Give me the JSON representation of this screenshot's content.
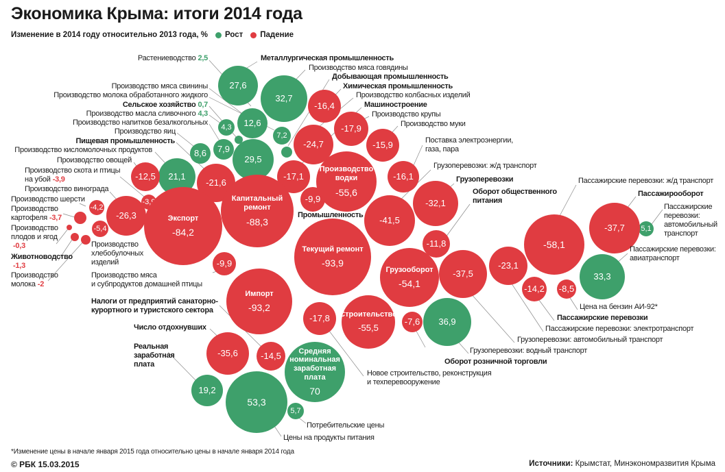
{
  "header": {
    "title": "Экономика Крыма: итоги 2014 года",
    "subtitle": "Изменение в 2014 году относительно 2013 года, %",
    "legend_growth": "Рост",
    "legend_decline": "Падение"
  },
  "colors": {
    "growth": "#3ea06b",
    "decline": "#e03c41",
    "text": "#1a1a1a",
    "line": "#8a8a8a"
  },
  "chart_data": {
    "type": "bubble",
    "title": "Экономика Крыма: итоги 2014 года",
    "unit": "%",
    "bubbles": [
      {
        "value": 27.6
      },
      {
        "value": 32.7
      },
      {
        "value": 12.6
      },
      {
        "value": 4.3
      },
      {
        "value": 0.7
      },
      {
        "value": 2.5
      },
      {
        "value": 7.2
      },
      {
        "value": 7.9
      },
      {
        "value": 8.6
      },
      {
        "value": 29.5
      },
      {
        "value": 21.1
      },
      {
        "value": 36.9
      },
      {
        "value": 33.3
      },
      {
        "value": 5.1
      },
      {
        "value": 70,
        "inner": "Средняя\nноминальная\nзаработная\nплата"
      },
      {
        "value": 19.2
      },
      {
        "value": 53.3
      },
      {
        "value": 5.7
      },
      {
        "value": -16.4
      },
      {
        "value": -24.7
      },
      {
        "value": -17.9
      },
      {
        "value": -15.9
      },
      {
        "value": -17.1
      },
      {
        "value": -55.6,
        "inner": "Производство\nводки"
      },
      {
        "value": -16.1
      },
      {
        "value": -9.9
      },
      {
        "value": -12.5
      },
      {
        "value": -21.6
      },
      {
        "value": -26.3
      },
      {
        "value": -4.2
      },
      {
        "value": -3.9
      },
      {
        "value": -5.4
      },
      {
        "value": -3.7
      },
      {
        "value": -0.3
      },
      {
        "value": -1.3
      },
      {
        "value": -2
      },
      {
        "value": -84.2,
        "inner": "Экспорт"
      },
      {
        "value": -88.3,
        "inner": "Капитальный\nремонт"
      },
      {
        "value": -9.9
      },
      {
        "value": -41.5
      },
      {
        "value": -32.1
      },
      {
        "value": -11.8
      },
      {
        "value": -93.9,
        "inner": "Текущий ремонт"
      },
      {
        "value": -93.2,
        "inner": "Импорт"
      },
      {
        "value": -54.1,
        "inner": "Грузооборот"
      },
      {
        "value": -37.5
      },
      {
        "value": -23.1
      },
      {
        "value": -58.1
      },
      {
        "value": -37.7
      },
      {
        "value": -14.2
      },
      {
        "value": -8.5
      },
      {
        "value": -17.8
      },
      {
        "value": -55.5,
        "inner": "Строительство"
      },
      {
        "value": -7.6
      },
      {
        "value": -35.6
      },
      {
        "value": -14.5
      }
    ],
    "labels": [
      {
        "text": "Растениеводство",
        "value": "2,5",
        "sign": "growth"
      },
      {
        "text": "Металлургическая промышленность",
        "bold": true
      },
      {
        "text": "Производство мяса говядины"
      },
      {
        "text": "Добывающая промышленность",
        "bold": true
      },
      {
        "text": "Химическая промышленность",
        "bold": true
      },
      {
        "text": "Производство колбасных изделий"
      },
      {
        "text": "Машиностроение",
        "bold": true
      },
      {
        "text": "Производство крупы"
      },
      {
        "text": "Производство муки"
      },
      {
        "text": "Поставка электроэнергии,\nгаза, пара"
      },
      {
        "text": "Грузоперевозки: ж/д транспорт"
      },
      {
        "text": "Грузоперевозки",
        "bold": true
      },
      {
        "text": "Оборот общественного\nпитания",
        "bold": true
      },
      {
        "text": "Производство мяса свинины"
      },
      {
        "text": "Производство молока обработанного жидкого"
      },
      {
        "text": "Сельское хозяйство",
        "value": "0,7",
        "sign": "growth",
        "bold": true
      },
      {
        "text": "Производство масла сливочного",
        "value": "4,3",
        "sign": "growth"
      },
      {
        "text": "Производство напитков безалкогольных"
      },
      {
        "text": "Производство яиц"
      },
      {
        "text": "Пищевая промышленность",
        "bold": true
      },
      {
        "text": "Производство кисломолочных продуктов"
      },
      {
        "text": "Производство овощей"
      },
      {
        "text": "Производство скота и птицы\nна убой",
        "value": "-3,9",
        "sign": "decline"
      },
      {
        "text": "Производство винограда"
      },
      {
        "text": "Производство шерсти"
      },
      {
        "text": "Производство\nкартофеля",
        "value": "-3,7",
        "sign": "decline"
      },
      {
        "text": "Производство\nплодов и ягод\n",
        "value": "-0,3",
        "sign": "decline"
      },
      {
        "text": "Животноводство\n",
        "value": "-1,3",
        "sign": "decline",
        "bold": true
      },
      {
        "text": "Производство\nмолока",
        "value": "-2",
        "sign": "decline"
      },
      {
        "text": "Производство\nхлебобулочных\nизделий"
      },
      {
        "text": "Производство мяса\nи субпродуктов домашней птицы"
      },
      {
        "text": "Промышленность",
        "bold": true
      },
      {
        "text": "Налоги от предприятий санаторно-\nкурортного и туристского сектора",
        "bold": true
      },
      {
        "text": "Число отдохнувших",
        "bold": true
      },
      {
        "text": "Реальная\nзаработная\nплата",
        "bold": true
      },
      {
        "text": "Потребительские цены"
      },
      {
        "text": "Цены на продукты питания"
      },
      {
        "text": "Новое строительство, реконструкция\nи техперевооружение"
      },
      {
        "text": "Оборот розничной торговли",
        "bold": true
      },
      {
        "text": "Грузоперевозки: водный транспорт"
      },
      {
        "text": "Грузоперевозки: автомобильный транспорт"
      },
      {
        "text": "Пассажирские перевозки: электротранспорт"
      },
      {
        "text": "Пассажирские перевозки",
        "bold": true
      },
      {
        "text": "Цена на бензин АИ-92*"
      },
      {
        "text": "Пассажирские перевозки: ж/д транспорт"
      },
      {
        "text": "Пассажирооборот",
        "bold": true
      },
      {
        "text": "Пассажирские\nперевозки:\nавтомобильный\nтранспорт"
      },
      {
        "text": "Пассажирские перевозки:\nавиатранспорт"
      }
    ]
  },
  "footer": {
    "footnote": "*Изменение цены в начале января 2015 года относительно цены в начале января 2014 года",
    "credit": "© РБК 15.03.2015",
    "sources_label": "Источники:",
    "sources": "Крымстат, Минэкономразвития Крыма"
  }
}
